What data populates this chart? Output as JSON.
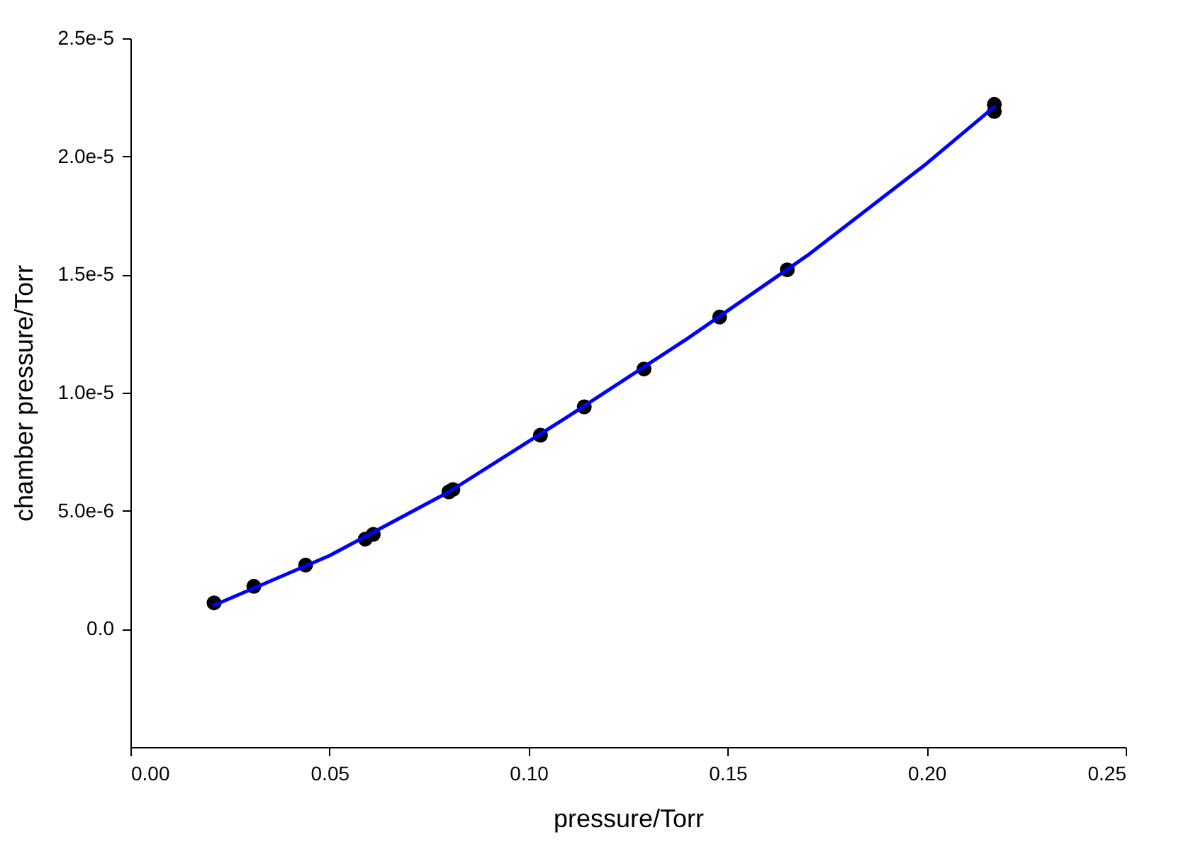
{
  "chart_data": {
    "type": "scatter",
    "xlabel": "pressure/Torr",
    "ylabel": "chamber pressure/Torr",
    "xlim": [
      0,
      0.25
    ],
    "xticks": [
      {
        "value": 0,
        "label": "0.00"
      },
      {
        "value": 0.05,
        "label": "0.05"
      },
      {
        "value": 0.1,
        "label": "0.10"
      },
      {
        "value": 0.15,
        "label": "0.15"
      },
      {
        "value": 0.2,
        "label": "0.20"
      },
      {
        "value": 0.25,
        "label": "0.25"
      }
    ],
    "ylim": [
      -5e-06,
      2.5e-05
    ],
    "yticks": [
      {
        "value": 0,
        "label": "0.0"
      },
      {
        "value": 5e-06,
        "label": "5.0e-6"
      },
      {
        "value": 1e-05,
        "label": "1.0e-5"
      },
      {
        "value": 1.5e-05,
        "label": "1.5e-5"
      },
      {
        "value": 2e-05,
        "label": "2.0e-5"
      },
      {
        "value": 2.5e-05,
        "label": "2.5e-5"
      }
    ],
    "grid": false,
    "series": [
      {
        "marker": "circle",
        "color": "#000000",
        "x": [
          0.021,
          0.031,
          0.044,
          0.059,
          0.061,
          0.08,
          0.081,
          0.103,
          0.114,
          0.129,
          0.148,
          0.165,
          0.217,
          0.217
        ],
        "values": [
          1.1e-06,
          1.8e-06,
          2.7e-06,
          3.8e-06,
          4e-06,
          5.8e-06,
          5.9e-06,
          8.2e-06,
          9.4e-06,
          1.1e-05,
          1.32e-05,
          1.52e-05,
          2.22e-05,
          2.19e-05
        ]
      },
      {
        "type": "line",
        "marker": "none",
        "line_style": "solid",
        "color": "#0000ff",
        "x": [
          0.021,
          0.05,
          0.08,
          0.11,
          0.14,
          0.17,
          0.2,
          0.217
        ],
        "values": [
          1e-06,
          3.1e-06,
          5.8e-06,
          9e-06,
          1.23e-05,
          1.58e-05,
          1.97e-05,
          2.21e-05
        ]
      }
    ]
  }
}
